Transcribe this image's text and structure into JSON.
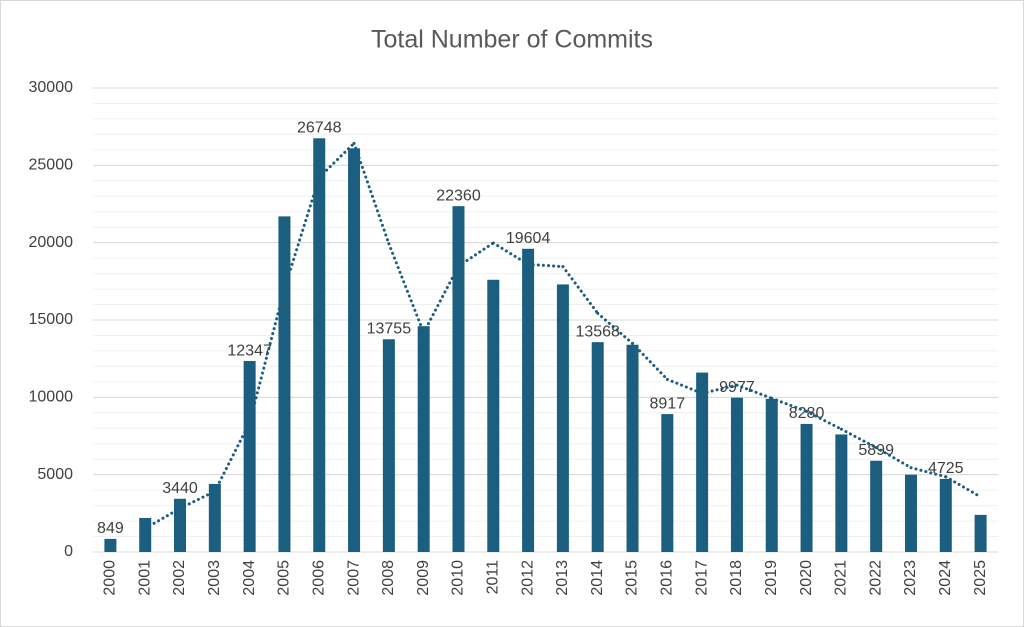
{
  "chart_data": {
    "type": "bar",
    "title": "Total Number of Commits",
    "categories": [
      "2000",
      "2001",
      "2002",
      "2003",
      "2004",
      "2005",
      "2006",
      "2007",
      "2008",
      "2009",
      "2010",
      "2011",
      "2012",
      "2013",
      "2014",
      "2015",
      "2016",
      "2017",
      "2018",
      "2019",
      "2020",
      "2021",
      "2022",
      "2023",
      "2024",
      "2025"
    ],
    "values": [
      849,
      2200,
      3440,
      4400,
      12347,
      21700,
      26748,
      26100,
      13755,
      14600,
      22360,
      17600,
      19604,
      17300,
      13568,
      13400,
      8917,
      11600,
      9977,
      9900,
      8280,
      7600,
      5899,
      5000,
      4725,
      2400
    ],
    "value_labels": [
      849,
      null,
      3440,
      null,
      12347,
      null,
      26748,
      null,
      13755,
      null,
      22360,
      null,
      19604,
      null,
      13568,
      null,
      8917,
      null,
      9977,
      null,
      8280,
      null,
      5899,
      null,
      4725,
      null
    ],
    "color": "#1b5e7f",
    "ylim": [
      0,
      30000
    ],
    "yticks": [
      0,
      5000,
      10000,
      15000,
      20000,
      25000,
      30000
    ],
    "grid": true,
    "minor_grid": 1000,
    "trendline": {
      "type": "moving_average",
      "period": 2,
      "color": "#1b5e7f"
    }
  }
}
